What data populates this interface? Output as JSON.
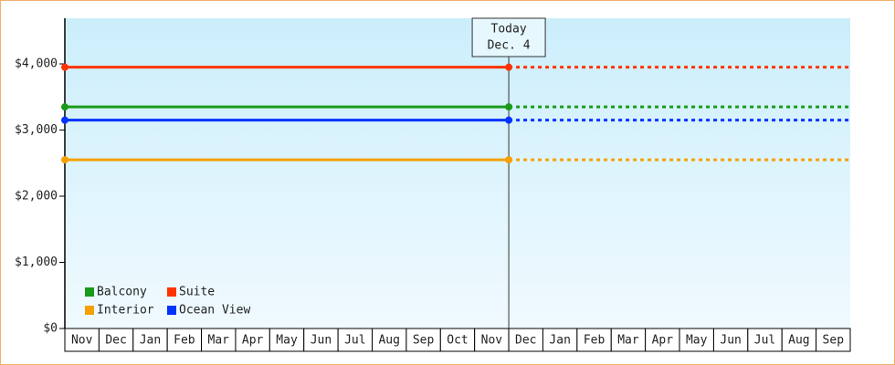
{
  "chart_data": {
    "type": "line",
    "categories": [
      "Nov",
      "Dec",
      "Jan",
      "Feb",
      "Mar",
      "Apr",
      "May",
      "Jun",
      "Jul",
      "Aug",
      "Sep",
      "Oct",
      "Nov",
      "Dec",
      "Jan",
      "Feb",
      "Mar",
      "Apr",
      "May",
      "Jun",
      "Jul",
      "Aug",
      "Sep"
    ],
    "series": [
      {
        "name": "Balcony",
        "color": "#1a9a1a",
        "values": [
          3350,
          3350,
          3350,
          3350,
          3350,
          3350,
          3350,
          3350,
          3350,
          3350,
          3350,
          3350,
          3350,
          3350,
          null,
          null,
          null,
          null,
          null,
          null,
          null,
          null,
          null
        ]
      },
      {
        "name": "Suite",
        "color": "#ff3300",
        "values": [
          3950,
          3950,
          3950,
          3950,
          3950,
          3950,
          3950,
          3950,
          3950,
          3950,
          3950,
          3950,
          3950,
          3950,
          null,
          null,
          null,
          null,
          null,
          null,
          null,
          null,
          null
        ]
      },
      {
        "name": "Interior",
        "color": "#f5a000",
        "values": [
          2550,
          2550,
          2550,
          2550,
          2550,
          2550,
          2550,
          2550,
          2550,
          2550,
          2550,
          2550,
          2550,
          2550,
          null,
          null,
          null,
          null,
          null,
          null,
          null,
          null,
          null
        ]
      },
      {
        "name": "Ocean View",
        "color": "#0033ff",
        "values": [
          3150,
          3150,
          3150,
          3150,
          3150,
          3150,
          3150,
          3150,
          3150,
          3150,
          3150,
          3150,
          3150,
          3150,
          null,
          null,
          null,
          null,
          null,
          null,
          null,
          null,
          null
        ]
      }
    ],
    "annotations": [
      "Today",
      "Dec. 4"
    ],
    "ylim": [
      0,
      4690
    ],
    "yticks": [
      {
        "value": 0,
        "label": "$0"
      },
      {
        "value": 1000,
        "label": "$1,000"
      },
      {
        "value": 2000,
        "label": "$2,000"
      },
      {
        "value": 3000,
        "label": "$3,000"
      },
      {
        "value": 4000,
        "label": "$4,000"
      }
    ],
    "legend": "lower-left"
  }
}
